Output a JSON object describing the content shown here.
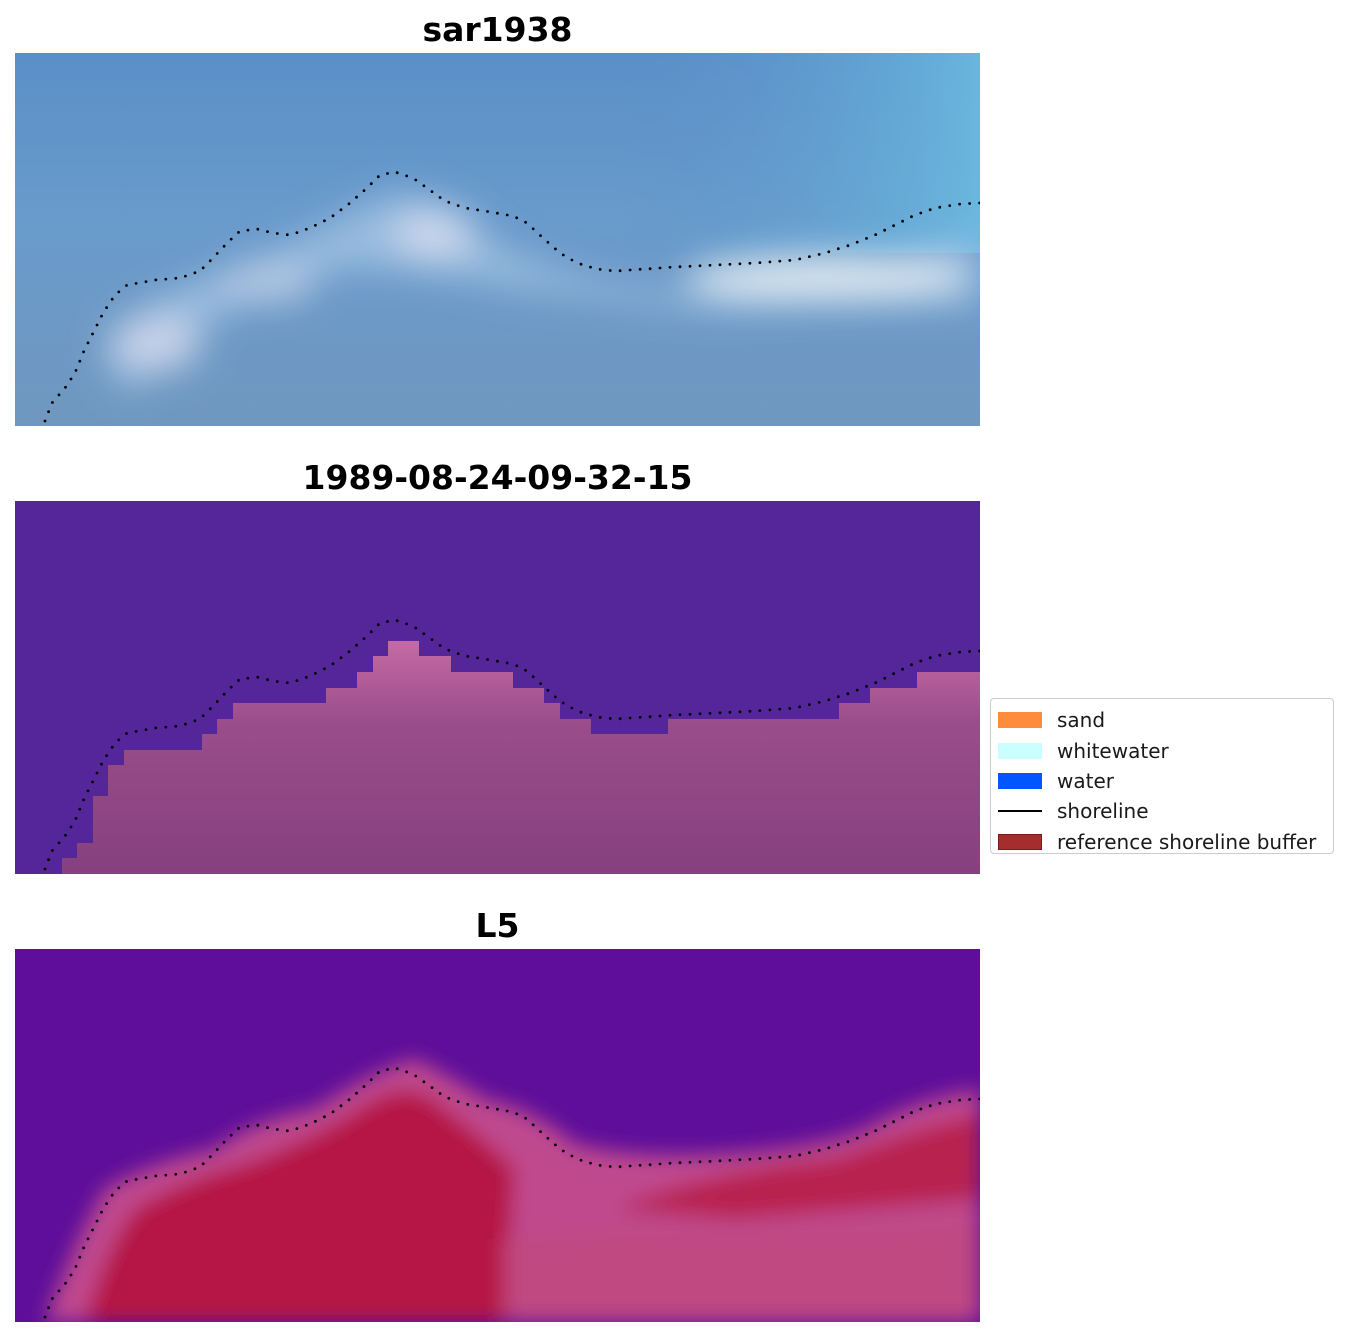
{
  "panels": [
    {
      "title": "sar1938"
    },
    {
      "title": "1989-08-24-09-32-15"
    },
    {
      "title": "L5"
    }
  ],
  "legend": {
    "items": [
      {
        "label": "sand",
        "color": "#fd8c3c",
        "kind": "patch"
      },
      {
        "label": "whitewater",
        "color": "#c9ffff",
        "kind": "patch"
      },
      {
        "label": "water",
        "color": "#0256ff",
        "kind": "patch"
      },
      {
        "label": "shoreline",
        "color": "#000000",
        "kind": "line"
      },
      {
        "label": "reference shoreline buffer",
        "color": "#a52d2d",
        "kind": "patch"
      }
    ]
  },
  "colors": {
    "classification_sea": "#552699",
    "classification_land": "#86407f",
    "classification_land_edge": "#c46ba4"
  }
}
